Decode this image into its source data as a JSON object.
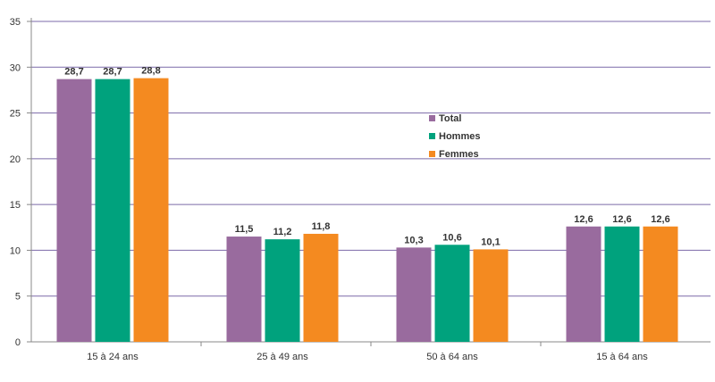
{
  "chart_data": {
    "type": "bar",
    "categories": [
      "15 à 24 ans",
      "25 à 49 ans",
      "50 à 64 ans",
      "15 à 64 ans"
    ],
    "series": [
      {
        "name": "Total",
        "color": "#996b9e",
        "values": [
          28.7,
          11.5,
          10.3,
          12.6
        ],
        "labels": [
          "28,7",
          "11,5",
          "10,3",
          "12,6"
        ]
      },
      {
        "name": "Hommes",
        "color": "#00a27d",
        "values": [
          28.7,
          11.2,
          10.6,
          12.6
        ],
        "labels": [
          "28,7",
          "11,2",
          "10,6",
          "12,6"
        ]
      },
      {
        "name": "Femmes",
        "color": "#f48a20",
        "values": [
          28.8,
          11.8,
          10.1,
          12.6
        ],
        "labels": [
          "28,8",
          "11,8",
          "10,1",
          "12,6"
        ]
      }
    ],
    "y_ticks": [
      0,
      5,
      10,
      15,
      20,
      25,
      30,
      35
    ],
    "ylim": [
      0,
      35
    ],
    "grid": true,
    "legend": "center-right",
    "gridline_color": "#7b6aa8",
    "title": "",
    "xlabel": "",
    "ylabel": ""
  }
}
